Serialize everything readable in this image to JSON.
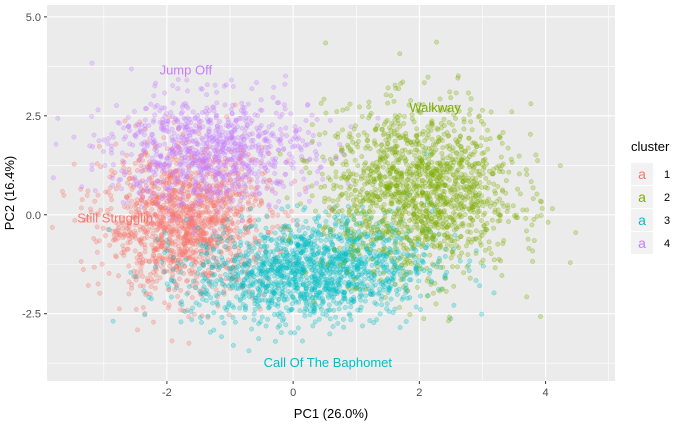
{
  "chart_data": {
    "type": "scatter",
    "title": "",
    "xlabel": "PC1 (26.0%)",
    "ylabel": "PC2 (16.4%)",
    "xlim": [
      -3.9,
      5.1
    ],
    "ylim": [
      -4.2,
      5.3
    ],
    "x_ticks": [
      -2,
      0,
      2,
      4
    ],
    "x_tick_labels": [
      "-2",
      "0",
      "2",
      "4"
    ],
    "y_ticks": [
      -2.5,
      0.0,
      2.5,
      5.0
    ],
    "y_tick_labels": [
      "-2.5",
      "0.0",
      "2.5",
      "5.0"
    ],
    "grid": true,
    "legend_title": "cluster",
    "legend_position": "right",
    "legend_key_glyph": "a",
    "series": [
      {
        "name": "1",
        "color": "#F8766D",
        "center": [
          -1.7,
          -0.2
        ],
        "spread": [
          0.65,
          0.9
        ],
        "n": 1400,
        "corr": 0.0
      },
      {
        "name": "2",
        "color": "#7CAE00",
        "center": [
          2.0,
          0.6
        ],
        "spread": [
          0.75,
          1.05
        ],
        "n": 1500,
        "corr": 0.0
      },
      {
        "name": "3",
        "color": "#00BFC4",
        "center": [
          0.3,
          -1.4
        ],
        "spread": [
          0.95,
          0.65
        ],
        "n": 1500,
        "corr": 0.15
      },
      {
        "name": "4",
        "color": "#C77CFF",
        "center": [
          -1.3,
          1.6
        ],
        "spread": [
          0.8,
          0.7
        ],
        "n": 900,
        "corr": 0.0
      }
    ],
    "annotations": [
      {
        "text": "Still Strugglin'",
        "x": -2.8,
        "y": -0.2,
        "color": "#F8766D"
      },
      {
        "text": "Walkway",
        "x": 2.25,
        "y": 2.6,
        "color": "#7CAE00"
      },
      {
        "text": "Call Of The Baphomet",
        "x": 0.55,
        "y": -3.85,
        "color": "#00BFC4"
      },
      {
        "text": "Jump Off",
        "x": -1.7,
        "y": 3.55,
        "color": "#C77CFF"
      }
    ]
  }
}
